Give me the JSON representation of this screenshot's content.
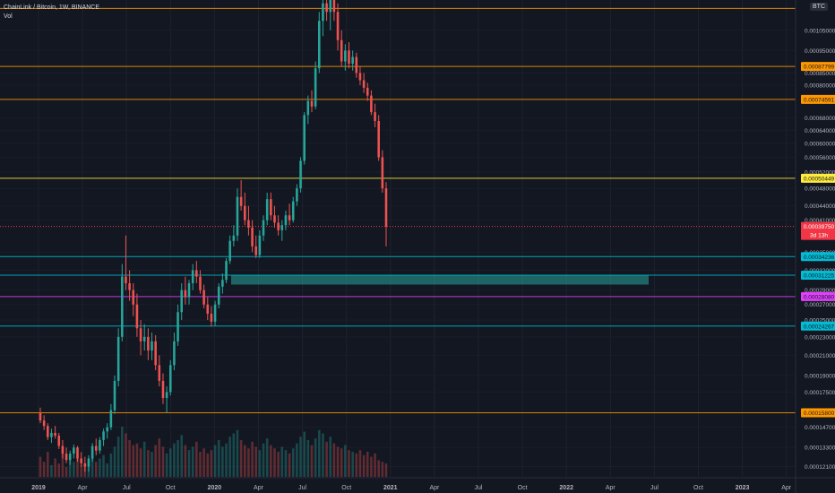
{
  "header": {
    "symbol_line": "ChainLink / Bitcoin, 1W, BINANCE",
    "indicator": "Vol",
    "currency_badge": "BTC"
  },
  "chart_data": {
    "type": "candlestick",
    "title": "ChainLink / Bitcoin, 1W, BINANCE",
    "x_tick_labels": [
      "2019",
      "Apr",
      "Jul",
      "Oct",
      "2020",
      "Apr",
      "Jul",
      "Oct",
      "2021",
      "Apr",
      "Jul",
      "Oct",
      "2022",
      "Apr",
      "Jul",
      "Oct",
      "2023",
      "Apr"
    ],
    "y_tick_labels": [
      "0.00105000",
      "0.00095000",
      "0.00085000",
      "0.00080000",
      "0.00068000",
      "0.00064000",
      "0.00060000",
      "0.00056000",
      "0.00052000",
      "0.00048000",
      "0.00044000",
      "0.00041000",
      "0.00035000",
      "0.00032000",
      "0.00029000",
      "0.00027000",
      "0.00025000",
      "0.00023000",
      "0.00021000",
      "0.00019000",
      "0.00017500",
      "0.00014700",
      "0.00013300",
      "0.00012100"
    ],
    "ylim": [
      0.000115,
      0.00122
    ],
    "y_scale": "log",
    "horizontal_levels": [
      {
        "price": 0.00117,
        "color": "#ff9800",
        "label": ""
      },
      {
        "price": 0.00087799,
        "color": "#ff9800",
        "label": "0.00087799"
      },
      {
        "price": 0.00074591,
        "color": "#ff9800",
        "label": "0.00074591"
      },
      {
        "price": 0.00050449,
        "color": "#ffeb3b",
        "label": "0.00050449"
      },
      {
        "price": 0.00034236,
        "color": "#00bcd4",
        "label": "0.00034236"
      },
      {
        "price": 0.00031225,
        "color": "#00bcd4",
        "label": "0.00031225"
      },
      {
        "price": 0.0002808,
        "color": "#e040fb",
        "label": "0.00028080"
      },
      {
        "price": 0.00024267,
        "color": "#00bcd4",
        "label": "0.00024267"
      },
      {
        "price": 0.000158,
        "color": "#ff9800",
        "label": "0.00015800"
      }
    ],
    "last_price": {
      "price": 0.0003975,
      "label": "0.00039750",
      "countdown": "3d 13h",
      "color": "#f23645"
    },
    "zone": {
      "from": 0.000298,
      "to": 0.000312,
      "color": "#26a69a"
    },
    "candles_ohlc": [
      [
        0.000158,
        0.000162,
        0.00015,
        0.000152
      ],
      [
        0.000152,
        0.000156,
        0.000145,
        0.000148
      ],
      [
        0.000148,
        0.00015,
        0.000138,
        0.00014
      ],
      [
        0.00014,
        0.000146,
        0.000136,
        0.000143
      ],
      [
        0.000143,
        0.000148,
        0.000139,
        0.000141
      ],
      [
        0.000141,
        0.000143,
        0.000132,
        0.000134
      ],
      [
        0.000134,
        0.000138,
        0.000126,
        0.000129
      ],
      [
        0.000129,
        0.000133,
        0.000123,
        0.000125
      ],
      [
        0.000125,
        0.000131,
        0.000122,
        0.000129
      ],
      [
        0.000129,
        0.000135,
        0.000126,
        0.000133
      ],
      [
        0.000133,
        0.000134,
        0.000124,
        0.000126
      ],
      [
        0.000126,
        0.00013,
        0.000121,
        0.000123
      ],
      [
        0.000123,
        0.000127,
        0.000118,
        0.000121
      ],
      [
        0.000121,
        0.000128,
        0.000118,
        0.000126
      ],
      [
        0.000126,
        0.000136,
        0.000124,
        0.000134
      ],
      [
        0.000134,
        0.000139,
        0.000128,
        0.000131
      ],
      [
        0.000131,
        0.00014,
        0.000129,
        0.000138
      ],
      [
        0.000138,
        0.000146,
        0.000134,
        0.000144
      ],
      [
        0.000144,
        0.00015,
        0.000139,
        0.000147
      ],
      [
        0.000147,
        0.000165,
        0.000145,
        0.00016
      ],
      [
        0.00016,
        0.00019,
        0.000157,
        0.000185
      ],
      [
        0.000185,
        0.00024,
        0.00018,
        0.00023
      ],
      [
        0.00023,
        0.00033,
        0.000225,
        0.00031
      ],
      [
        0.00031,
        0.00038,
        0.00029,
        0.0003
      ],
      [
        0.0003,
        0.00032,
        0.000275,
        0.00029
      ],
      [
        0.00029,
        0.0003,
        0.000255,
        0.00027
      ],
      [
        0.00027,
        0.000285,
        0.00023,
        0.00024
      ],
      [
        0.00024,
        0.00025,
        0.00021,
        0.000225
      ],
      [
        0.000225,
        0.000245,
        0.000215,
        0.00023
      ],
      [
        0.00023,
        0.00024,
        0.000205,
        0.000215
      ],
      [
        0.000215,
        0.000235,
        0.000205,
        0.000225
      ],
      [
        0.000225,
        0.000232,
        0.000195,
        0.0002
      ],
      [
        0.0002,
        0.00021,
        0.00018,
        0.000185
      ],
      [
        0.000185,
        0.000192,
        0.000165,
        0.00017
      ],
      [
        0.00017,
        0.00018,
        0.000158,
        0.000175
      ],
      [
        0.000175,
        0.000205,
        0.000172,
        0.0002
      ],
      [
        0.0002,
        0.000235,
        0.000195,
        0.000225
      ],
      [
        0.000225,
        0.00027,
        0.00022,
        0.00026
      ],
      [
        0.00026,
        0.0003,
        0.00025,
        0.00029
      ],
      [
        0.00029,
        0.00031,
        0.00027,
        0.00028
      ],
      [
        0.00028,
        0.000305,
        0.00027,
        0.0003
      ],
      [
        0.0003,
        0.00033,
        0.00029,
        0.00032
      ],
      [
        0.00032,
        0.000335,
        0.0003,
        0.00031
      ],
      [
        0.00031,
        0.00032,
        0.000285,
        0.00029
      ],
      [
        0.00029,
        0.000298,
        0.000265,
        0.00027
      ],
      [
        0.00027,
        0.00028,
        0.00025,
        0.000258
      ],
      [
        0.000258,
        0.000268,
        0.000242,
        0.000248
      ],
      [
        0.000248,
        0.000275,
        0.000243,
        0.00027
      ],
      [
        0.00027,
        0.0003,
        0.000265,
        0.000295
      ],
      [
        0.000295,
        0.000315,
        0.000285,
        0.000305
      ],
      [
        0.000305,
        0.00034,
        0.0003,
        0.000335
      ],
      [
        0.000335,
        0.00038,
        0.00033,
        0.00037
      ],
      [
        0.00037,
        0.0004,
        0.00036,
        0.00038
      ],
      [
        0.00038,
        0.00048,
        0.00037,
        0.00046
      ],
      [
        0.00046,
        0.0005,
        0.00043,
        0.00044
      ],
      [
        0.00044,
        0.00047,
        0.0004,
        0.00041
      ],
      [
        0.00041,
        0.00044,
        0.00038,
        0.000395
      ],
      [
        0.000395,
        0.00041,
        0.00035,
        0.00036
      ],
      [
        0.00036,
        0.00038,
        0.00034,
        0.000345
      ],
      [
        0.000345,
        0.00039,
        0.00034,
        0.00038
      ],
      [
        0.00038,
        0.00042,
        0.00037,
        0.00041
      ],
      [
        0.00041,
        0.00047,
        0.0004,
        0.000455
      ],
      [
        0.000455,
        0.00047,
        0.00041,
        0.00042
      ],
      [
        0.00042,
        0.00044,
        0.000395,
        0.000405
      ],
      [
        0.000405,
        0.00042,
        0.00038,
        0.00039
      ],
      [
        0.00039,
        0.00041,
        0.00037,
        0.0004
      ],
      [
        0.0004,
        0.00043,
        0.00039,
        0.00042
      ],
      [
        0.00042,
        0.000445,
        0.0004,
        0.00041
      ],
      [
        0.00041,
        0.00046,
        0.000405,
        0.00045
      ],
      [
        0.00045,
        0.00049,
        0.00044,
        0.00048
      ],
      [
        0.00048,
        0.00056,
        0.00047,
        0.00055
      ],
      [
        0.00055,
        0.0007,
        0.00054,
        0.00069
      ],
      [
        0.00069,
        0.00076,
        0.00066,
        0.00074
      ],
      [
        0.00074,
        0.00078,
        0.0007,
        0.00072
      ],
      [
        0.00072,
        0.0009,
        0.00071,
        0.00087
      ],
      [
        0.00087,
        0.00115,
        0.00085,
        0.0011
      ],
      [
        0.0011,
        0.0013,
        0.00102,
        0.0012
      ],
      [
        0.0012,
        0.00135,
        0.0011,
        0.00115
      ],
      [
        0.00115,
        0.0013,
        0.00105,
        0.00125
      ],
      [
        0.00125,
        0.00132,
        0.0011,
        0.00115
      ],
      [
        0.00115,
        0.0012,
        0.00095,
        0.001
      ],
      [
        0.001,
        0.00105,
        0.00088,
        0.0009
      ],
      [
        0.0009,
        0.00098,
        0.00086,
        0.00095
      ],
      [
        0.00095,
        0.00099,
        0.00087,
        0.00089
      ],
      [
        0.00089,
        0.00095,
        0.00086,
        0.00092
      ],
      [
        0.00092,
        0.00094,
        0.00083,
        0.00085
      ],
      [
        0.00085,
        0.00088,
        0.0008,
        0.00082
      ],
      [
        0.00082,
        0.00085,
        0.00077,
        0.00079
      ],
      [
        0.00079,
        0.00081,
        0.00074,
        0.00076
      ],
      [
        0.00076,
        0.00078,
        0.00069,
        0.0007
      ],
      [
        0.0007,
        0.00073,
        0.00065,
        0.00067
      ],
      [
        0.00067,
        0.00069,
        0.00055,
        0.00056
      ],
      [
        0.00056,
        0.00058,
        0.00047,
        0.00048
      ],
      [
        0.00048,
        0.000495,
        0.00036,
        0.000397
      ]
    ],
    "volume": [
      12,
      9,
      15,
      7,
      11,
      8,
      14,
      6,
      10,
      9,
      13,
      7,
      8,
      10,
      12,
      9,
      11,
      13,
      8,
      14,
      18,
      24,
      30,
      26,
      22,
      19,
      20,
      17,
      21,
      16,
      15,
      19,
      23,
      18,
      14,
      17,
      20,
      22,
      25,
      19,
      16,
      18,
      21,
      15,
      17,
      14,
      16,
      19,
      22,
      18,
      20,
      24,
      26,
      28,
      22,
      19,
      17,
      21,
      18,
      16,
      20,
      23,
      19,
      17,
      15,
      18,
      16,
      14,
      17,
      20,
      24,
      27,
      22,
      19,
      23,
      28,
      26,
      21,
      24,
      20,
      18,
      17,
      19,
      16,
      15,
      14,
      16,
      13,
      15,
      12,
      14,
      10,
      9,
      8
    ]
  }
}
